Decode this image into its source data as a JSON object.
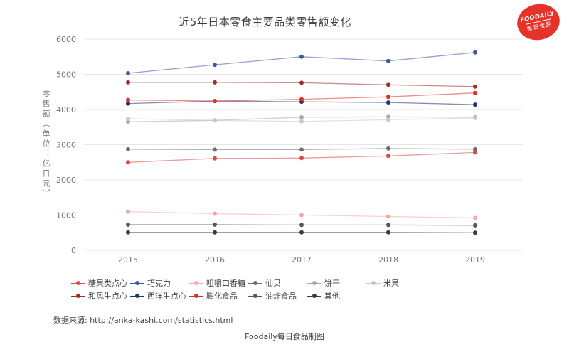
{
  "title": "近5年日本零食主要品类零售额变化",
  "logo": {
    "line1": "FOODAILY",
    "line2": "每日食品",
    "bg_color": "#e5332a"
  },
  "y_axis_title": "零售额（单位：亿日元）",
  "footer": {
    "source": "数据来源: http://anka-kashi.com/statistics.html",
    "credit": "Foodaily每日食品制图"
  },
  "chart_data": {
    "type": "line",
    "title": "近5年日本零食主要品类零售额变化",
    "ylabel": "零售额（单位：亿日元）",
    "categories": [
      "2015",
      "2016",
      "2017",
      "2018",
      "2019"
    ],
    "ylim": [
      0,
      6000
    ],
    "yticks": [
      0,
      1000,
      2000,
      3000,
      4000,
      5000,
      6000
    ],
    "grid": "horizontal",
    "legend_position": "bottom",
    "series": [
      {
        "name": "糖果类点心",
        "color": "#dc4b48",
        "values": [
          2500,
          2610,
          2620,
          2680,
          2780
        ]
      },
      {
        "name": "巧克力",
        "color": "#3f56a7",
        "values": [
          5030,
          5270,
          5500,
          5380,
          5620
        ]
      },
      {
        "name": "咀嚼口香糖",
        "color": "#f2a9a6",
        "values": [
          1100,
          1040,
          1000,
          960,
          920
        ]
      },
      {
        "name": "仙贝",
        "color": "#6d6d6d",
        "values": [
          2870,
          2860,
          2860,
          2890,
          2870
        ]
      },
      {
        "name": "饼干",
        "color": "#aaaaaa",
        "values": [
          3650,
          3690,
          3780,
          3790,
          3780
        ]
      },
      {
        "name": "米果",
        "color": "#c8c8c8",
        "values": [
          3740,
          3690,
          3660,
          3710,
          3760
        ]
      },
      {
        "name": "和风生点心",
        "color": "#9c2f2c",
        "values": [
          4770,
          4770,
          4760,
          4700,
          4650
        ]
      },
      {
        "name": "西洋生点心",
        "color": "#22346a",
        "values": [
          4170,
          4240,
          4220,
          4200,
          4140
        ]
      },
      {
        "name": "膨化食品",
        "color": "#e12c28",
        "values": [
          4270,
          4240,
          4290,
          4360,
          4470
        ]
      },
      {
        "name": "油炸食品",
        "color": "#565656",
        "values": [
          730,
          730,
          720,
          720,
          710
        ]
      },
      {
        "name": "其他",
        "color": "#3b3b3b",
        "values": [
          510,
          510,
          510,
          510,
          500
        ]
      }
    ]
  }
}
